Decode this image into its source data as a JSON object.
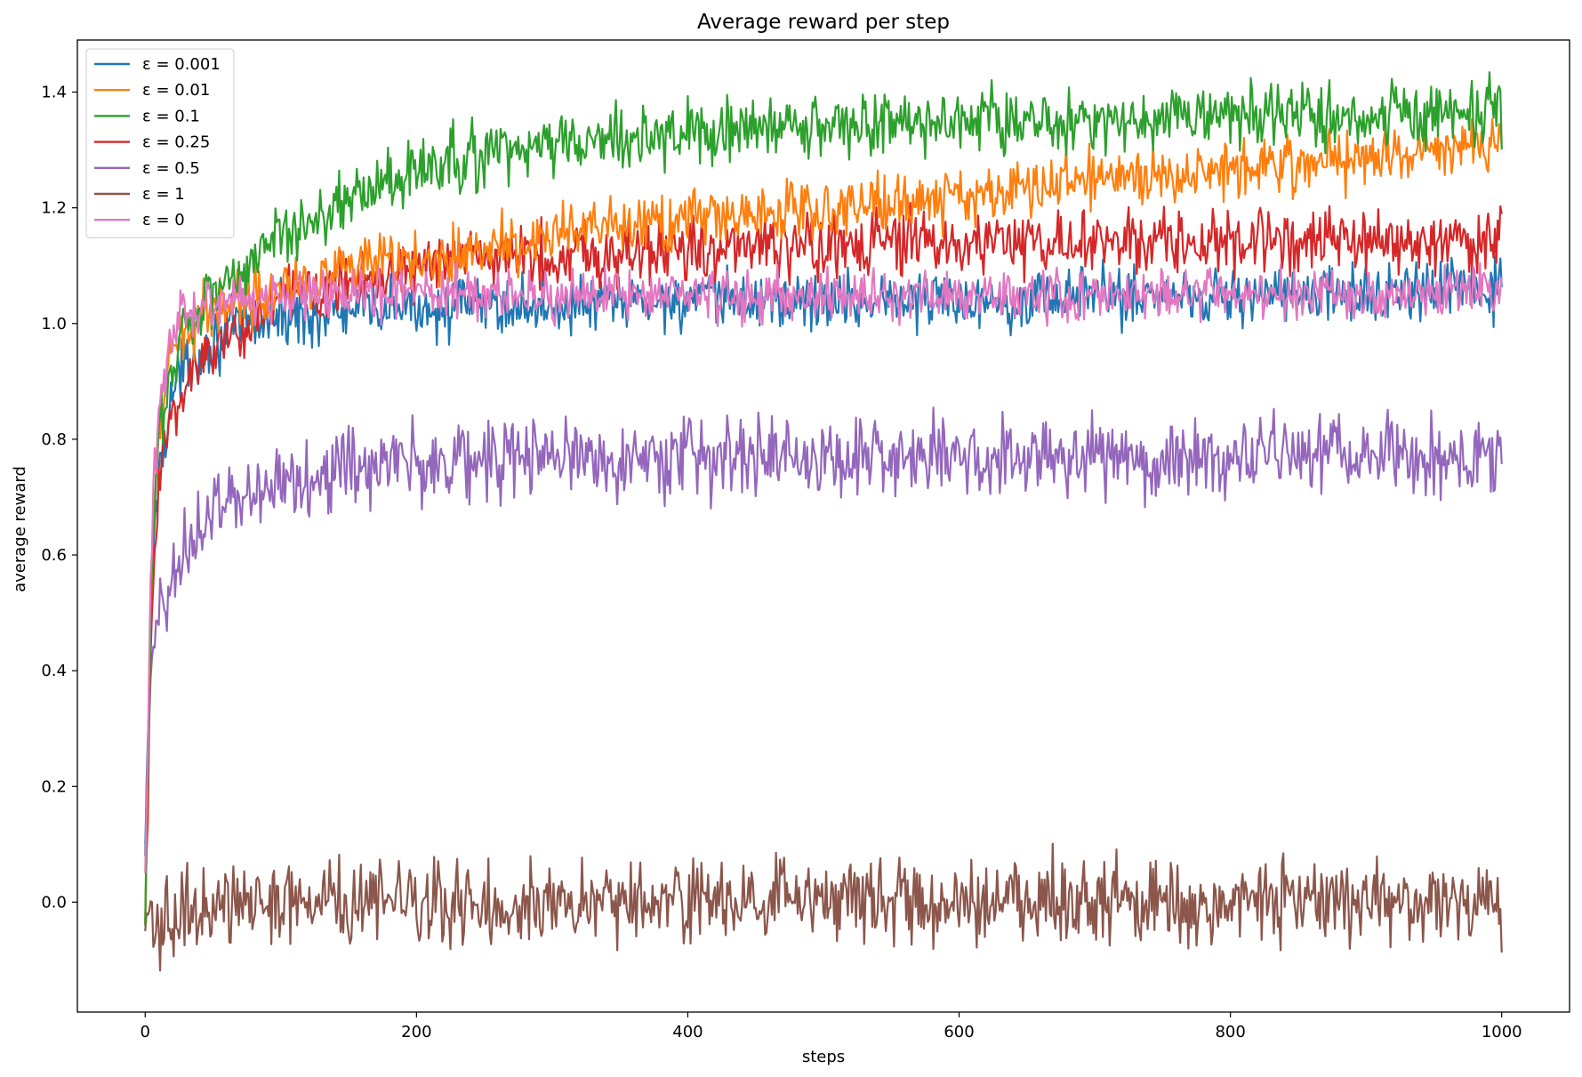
{
  "chart_data": {
    "type": "line",
    "title": "Average reward per step",
    "xlabel": "steps",
    "ylabel": "average reward",
    "xlim": [
      -50,
      1050
    ],
    "ylim": [
      -0.19,
      1.49
    ],
    "xticks": [
      0,
      200,
      400,
      600,
      800,
      1000
    ],
    "xtick_labels": [
      "0",
      "200",
      "400",
      "600",
      "800",
      "1000"
    ],
    "yticks": [
      0.0,
      0.2,
      0.4,
      0.6,
      0.8,
      1.0,
      1.2,
      1.4
    ],
    "ytick_labels": [
      "0.0",
      "0.2",
      "0.4",
      "0.6",
      "0.8",
      "1.0",
      "1.2",
      "1.4"
    ],
    "grid": false,
    "legend_position": "top-left",
    "x_range": [
      0,
      1000
    ],
    "series": [
      {
        "name": "ε = 0.001",
        "color": "#1f77b4",
        "x": [
          0,
          5,
          10,
          20,
          30,
          50,
          75,
          100,
          150,
          200,
          300,
          400,
          500,
          600,
          700,
          800,
          900,
          1000
        ],
        "values": [
          0.08,
          0.55,
          0.75,
          0.88,
          0.93,
          0.97,
          1.0,
          1.01,
          1.02,
          1.03,
          1.03,
          1.04,
          1.04,
          1.04,
          1.05,
          1.05,
          1.05,
          1.06
        ],
        "noise": 0.025
      },
      {
        "name": "ε = 0.01",
        "color": "#ff7f0e",
        "x": [
          0,
          5,
          10,
          20,
          30,
          50,
          75,
          100,
          150,
          200,
          250,
          300,
          400,
          500,
          600,
          700,
          800,
          900,
          1000
        ],
        "values": [
          -0.04,
          0.6,
          0.82,
          0.94,
          0.99,
          1.03,
          1.05,
          1.07,
          1.09,
          1.11,
          1.13,
          1.15,
          1.18,
          1.2,
          1.22,
          1.25,
          1.27,
          1.29,
          1.31
        ],
        "noise": 0.025
      },
      {
        "name": "ε = 0.1",
        "color": "#2ca02c",
        "x": [
          0,
          5,
          10,
          20,
          30,
          50,
          75,
          100,
          150,
          200,
          250,
          300,
          400,
          500,
          600,
          700,
          800,
          900,
          1000
        ],
        "values": [
          -0.04,
          0.6,
          0.8,
          0.93,
          1.0,
          1.06,
          1.1,
          1.15,
          1.22,
          1.26,
          1.29,
          1.31,
          1.33,
          1.34,
          1.35,
          1.35,
          1.36,
          1.36,
          1.36
        ],
        "noise": 0.028
      },
      {
        "name": "ε = 0.25",
        "color": "#d62728",
        "x": [
          0,
          5,
          10,
          20,
          30,
          50,
          75,
          100,
          150,
          200,
          300,
          400,
          500,
          600,
          700,
          800,
          900,
          1000
        ],
        "values": [
          -0.04,
          0.5,
          0.72,
          0.85,
          0.9,
          0.96,
          1.0,
          1.04,
          1.08,
          1.1,
          1.12,
          1.13,
          1.13,
          1.14,
          1.14,
          1.14,
          1.14,
          1.14
        ],
        "noise": 0.028
      },
      {
        "name": "ε = 0.5",
        "color": "#9467bd",
        "x": [
          0,
          5,
          10,
          20,
          30,
          50,
          75,
          100,
          150,
          200,
          300,
          400,
          500,
          600,
          700,
          800,
          900,
          1000
        ],
        "values": [
          0.1,
          0.4,
          0.5,
          0.57,
          0.62,
          0.67,
          0.71,
          0.73,
          0.75,
          0.76,
          0.77,
          0.77,
          0.77,
          0.77,
          0.77,
          0.77,
          0.77,
          0.77
        ],
        "noise": 0.035
      },
      {
        "name": "ε = 1",
        "color": "#8c564b",
        "x": [
          0,
          50,
          100,
          200,
          300,
          400,
          500,
          600,
          700,
          800,
          900,
          1000
        ],
        "values": [
          -0.05,
          0.0,
          0.0,
          0.0,
          0.0,
          0.0,
          0.0,
          0.0,
          0.0,
          0.0,
          0.0,
          0.0
        ],
        "noise": 0.035
      },
      {
        "name": "ε = 0",
        "color": "#e377c2",
        "x": [
          0,
          5,
          10,
          20,
          30,
          50,
          75,
          100,
          150,
          200,
          300,
          400,
          500,
          600,
          700,
          800,
          900,
          1000
        ],
        "values": [
          0.05,
          0.65,
          0.85,
          0.97,
          1.02,
          1.04,
          1.05,
          1.05,
          1.05,
          1.05,
          1.05,
          1.05,
          1.05,
          1.05,
          1.05,
          1.05,
          1.05,
          1.05
        ],
        "noise": 0.022
      }
    ]
  }
}
